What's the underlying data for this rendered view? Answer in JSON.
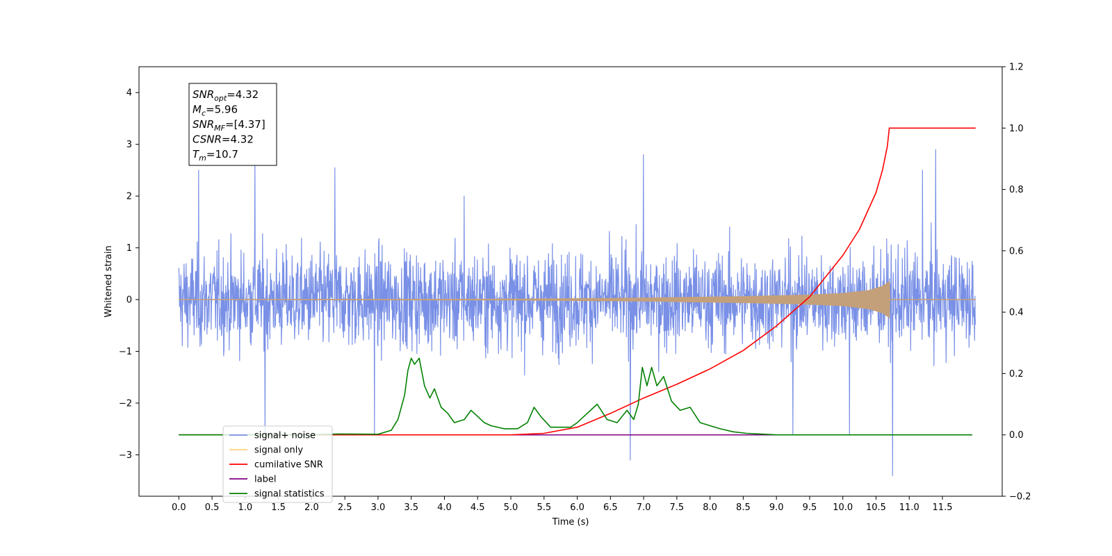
{
  "chart_data": {
    "type": "line",
    "xlabel": "Time (s)",
    "ylabel": "Whitened strain",
    "xlim": [
      -0.6,
      12.4
    ],
    "ylim": [
      -3.8,
      4.5
    ],
    "ylim_right": [
      -0.2,
      1.2
    ],
    "x_ticks": [
      "0.0",
      "0.5",
      "1.0",
      "1.5",
      "2.0",
      "2.5",
      "3.0",
      "3.5",
      "4.0",
      "4.5",
      "5.0",
      "5.5",
      "6.0",
      "6.5",
      "7.0",
      "7.5",
      "8.0",
      "8.5",
      "9.0",
      "9.5",
      "10.0",
      "10.5",
      "11.0",
      "11.5"
    ],
    "y_ticks_left": [
      -3,
      -2,
      -1,
      0,
      1,
      2,
      3,
      4
    ],
    "y_ticks_left_labels": [
      "−3",
      "−2",
      "−1",
      "0",
      "1",
      "2",
      "3",
      "4"
    ],
    "y_ticks_right": [
      -0.2,
      0.0,
      0.2,
      0.4,
      0.6,
      0.8,
      1.0,
      1.2
    ],
    "y_ticks_right_labels": [
      "−0.2",
      "0.0",
      "0.2",
      "0.4",
      "0.6",
      "0.8",
      "1.0",
      "1.2"
    ],
    "colors": {
      "signal_noise": "#7990e6",
      "signal_only": "#c4a07a",
      "cumulative_snr": "#ff0000",
      "label": "#800080",
      "signal_statistics": "#008000"
    },
    "annotation": [
      {
        "base": "SNR",
        "sub": "opt",
        "value": "=4.32"
      },
      {
        "base": "M",
        "sub": "c",
        "value": "=5.96"
      },
      {
        "base": "SNR",
        "sub": "MF",
        "value": "=[4.37]"
      },
      {
        "base": "CSNR",
        "sub": "",
        "value": "=4.32"
      },
      {
        "base": "T",
        "sub": "m",
        "value": "=10.7"
      }
    ],
    "legend": {
      "position": "lower-left",
      "entries": [
        {
          "label": "signal+ noise",
          "color": "#7990e6"
        },
        {
          "label": "signal only",
          "color": "#ffd27a"
        },
        {
          "label": "cumilative SNR",
          "color": "#ff0000"
        },
        {
          "label": "label",
          "color": "#800080"
        },
        {
          "label": "signal statistics",
          "color": "#008000"
        }
      ]
    },
    "series": [
      {
        "name": "signal+ noise",
        "axis": "left",
        "x_range": [
          0.0,
          12.0
        ],
        "typical_range": [
          -1.8,
          1.8
        ],
        "spikes": [
          [
            0.3,
            2.5
          ],
          [
            1.15,
            2.7
          ],
          [
            1.3,
            -2.6
          ],
          [
            2.35,
            2.55
          ],
          [
            2.95,
            -2.6
          ],
          [
            4.3,
            2.0
          ],
          [
            6.8,
            -3.1
          ],
          [
            7.0,
            2.8
          ],
          [
            9.25,
            -2.6
          ],
          [
            10.1,
            -2.6
          ],
          [
            10.75,
            -3.4
          ],
          [
            11.4,
            2.9
          ],
          [
            11.2,
            2.5
          ]
        ]
      },
      {
        "name": "signal only",
        "axis": "left",
        "x_range": [
          0.0,
          12.0
        ],
        "envelope": [
          [
            0.0,
            0.0
          ],
          [
            5.0,
            0.01
          ],
          [
            7.0,
            0.03
          ],
          [
            8.5,
            0.06
          ],
          [
            9.5,
            0.09
          ],
          [
            10.0,
            0.12
          ],
          [
            10.4,
            0.18
          ],
          [
            10.6,
            0.26
          ],
          [
            10.7,
            0.35
          ],
          [
            10.71,
            0.0
          ],
          [
            12.0,
            0.0
          ]
        ]
      },
      {
        "name": "cumilative SNR",
        "axis": "right",
        "points": [
          [
            0.0,
            0.0
          ],
          [
            5.0,
            0.0
          ],
          [
            5.5,
            0.005
          ],
          [
            6.0,
            0.025
          ],
          [
            6.5,
            0.07
          ],
          [
            7.0,
            0.12
          ],
          [
            7.5,
            0.165
          ],
          [
            8.0,
            0.215
          ],
          [
            8.5,
            0.275
          ],
          [
            9.0,
            0.355
          ],
          [
            9.5,
            0.45
          ],
          [
            10.0,
            0.585
          ],
          [
            10.25,
            0.67
          ],
          [
            10.5,
            0.79
          ],
          [
            10.6,
            0.865
          ],
          [
            10.67,
            0.94
          ],
          [
            10.7,
            1.0
          ],
          [
            12.0,
            1.0
          ]
        ]
      },
      {
        "name": "label",
        "axis": "right",
        "points": [
          [
            0.0,
            0.0
          ],
          [
            11.95,
            0.0
          ]
        ]
      },
      {
        "name": "signal statistics",
        "axis": "right",
        "points": [
          [
            0.0,
            0.0
          ],
          [
            2.0,
            0.0
          ],
          [
            2.4,
            0.003
          ],
          [
            3.0,
            0.002
          ],
          [
            3.2,
            0.015
          ],
          [
            3.3,
            0.05
          ],
          [
            3.4,
            0.13
          ],
          [
            3.45,
            0.21
          ],
          [
            3.5,
            0.25
          ],
          [
            3.55,
            0.23
          ],
          [
            3.62,
            0.25
          ],
          [
            3.7,
            0.16
          ],
          [
            3.78,
            0.12
          ],
          [
            3.85,
            0.15
          ],
          [
            3.95,
            0.09
          ],
          [
            4.05,
            0.07
          ],
          [
            4.15,
            0.04
          ],
          [
            4.3,
            0.05
          ],
          [
            4.4,
            0.08
          ],
          [
            4.5,
            0.06
          ],
          [
            4.6,
            0.04
          ],
          [
            4.7,
            0.03
          ],
          [
            4.9,
            0.02
          ],
          [
            5.1,
            0.02
          ],
          [
            5.25,
            0.04
          ],
          [
            5.35,
            0.09
          ],
          [
            5.45,
            0.06
          ],
          [
            5.6,
            0.025
          ],
          [
            5.75,
            0.025
          ],
          [
            5.9,
            0.025
          ],
          [
            6.0,
            0.04
          ],
          [
            6.15,
            0.07
          ],
          [
            6.3,
            0.1
          ],
          [
            6.45,
            0.05
          ],
          [
            6.6,
            0.04
          ],
          [
            6.75,
            0.08
          ],
          [
            6.85,
            0.05
          ],
          [
            6.92,
            0.1
          ],
          [
            6.98,
            0.22
          ],
          [
            7.05,
            0.16
          ],
          [
            7.12,
            0.22
          ],
          [
            7.2,
            0.16
          ],
          [
            7.3,
            0.19
          ],
          [
            7.42,
            0.11
          ],
          [
            7.55,
            0.08
          ],
          [
            7.7,
            0.09
          ],
          [
            7.85,
            0.04
          ],
          [
            8.0,
            0.03
          ],
          [
            8.15,
            0.02
          ],
          [
            8.35,
            0.01
          ],
          [
            8.55,
            0.005
          ],
          [
            8.75,
            0.003
          ],
          [
            9.0,
            0.0
          ],
          [
            11.95,
            0.0
          ]
        ]
      }
    ]
  }
}
